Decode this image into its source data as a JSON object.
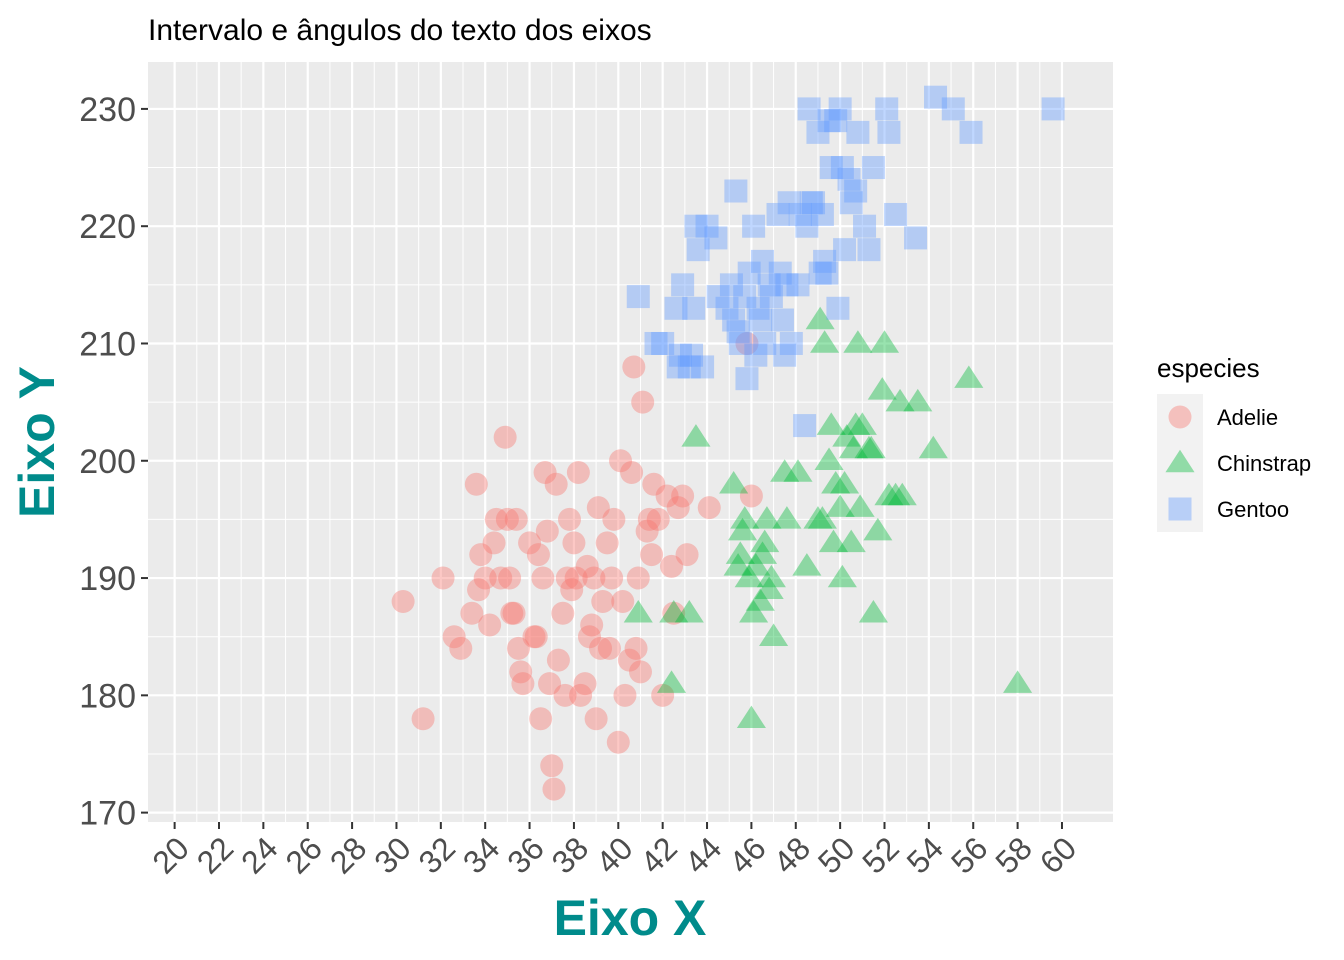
{
  "chart_data": {
    "type": "scatter",
    "title": "Intervalo e ângulos do texto dos eixos",
    "xlabel": "Eixo X",
    "ylabel": "Eixo Y",
    "axis_title_color": "#008B8B",
    "xlim": [
      18.8,
      62.3
    ],
    "ylim": [
      169.2,
      234
    ],
    "x_ticks": [
      20,
      22,
      24,
      26,
      28,
      30,
      32,
      34,
      36,
      38,
      40,
      42,
      44,
      46,
      48,
      50,
      52,
      54,
      56,
      58,
      60
    ],
    "y_ticks": [
      170,
      180,
      190,
      200,
      210,
      220,
      230
    ],
    "x_tick_angle": 45,
    "grid": true,
    "legend": {
      "title": "especies",
      "placement": "right",
      "entries": [
        {
          "name": "Adelie",
          "color": "#F8766D",
          "shape": "circle"
        },
        {
          "name": "Chinstrap",
          "color": "#00BA38",
          "shape": "triangle"
        },
        {
          "name": "Gentoo",
          "color": "#619CFF",
          "shape": "square"
        }
      ]
    },
    "series": [
      {
        "name": "Adelie",
        "color": "#F8766D",
        "shape": "circle",
        "points": [
          [
            30.3,
            188
          ],
          [
            31.2,
            178
          ],
          [
            32.1,
            190
          ],
          [
            32.6,
            185
          ],
          [
            32.9,
            184
          ],
          [
            33.4,
            187
          ],
          [
            33.6,
            198
          ],
          [
            33.7,
            189
          ],
          [
            33.8,
            192
          ],
          [
            34.0,
            190
          ],
          [
            34.2,
            186
          ],
          [
            34.4,
            193
          ],
          [
            34.5,
            195
          ],
          [
            34.7,
            190
          ],
          [
            34.9,
            202
          ],
          [
            35.0,
            195
          ],
          [
            35.1,
            190
          ],
          [
            35.2,
            187
          ],
          [
            35.3,
            187
          ],
          [
            35.4,
            195
          ],
          [
            35.5,
            184
          ],
          [
            35.6,
            182
          ],
          [
            35.7,
            181
          ],
          [
            36.0,
            193
          ],
          [
            36.2,
            185
          ],
          [
            36.3,
            185
          ],
          [
            36.4,
            192
          ],
          [
            36.5,
            178
          ],
          [
            36.6,
            190
          ],
          [
            36.7,
            199
          ],
          [
            36.8,
            194
          ],
          [
            36.9,
            181
          ],
          [
            37.0,
            174
          ],
          [
            37.1,
            172
          ],
          [
            37.2,
            198
          ],
          [
            37.3,
            183
          ],
          [
            37.5,
            187
          ],
          [
            37.6,
            180
          ],
          [
            37.7,
            190
          ],
          [
            37.8,
            195
          ],
          [
            37.9,
            189
          ],
          [
            38.0,
            193
          ],
          [
            38.1,
            190
          ],
          [
            38.2,
            199
          ],
          [
            38.3,
            180
          ],
          [
            38.5,
            181
          ],
          [
            38.6,
            191
          ],
          [
            38.7,
            185
          ],
          [
            38.8,
            186
          ],
          [
            38.9,
            190
          ],
          [
            39.0,
            178
          ],
          [
            39.1,
            196
          ],
          [
            39.2,
            184
          ],
          [
            39.3,
            188
          ],
          [
            39.5,
            193
          ],
          [
            39.6,
            184
          ],
          [
            39.7,
            190
          ],
          [
            39.8,
            195
          ],
          [
            40.0,
            176
          ],
          [
            40.1,
            200
          ],
          [
            40.2,
            188
          ],
          [
            40.3,
            180
          ],
          [
            40.5,
            183
          ],
          [
            40.6,
            199
          ],
          [
            40.7,
            208
          ],
          [
            40.8,
            184
          ],
          [
            40.9,
            190
          ],
          [
            41.0,
            182
          ],
          [
            41.1,
            205
          ],
          [
            41.3,
            194
          ],
          [
            41.4,
            195
          ],
          [
            41.5,
            192
          ],
          [
            41.6,
            198
          ],
          [
            41.8,
            195
          ],
          [
            42.0,
            180
          ],
          [
            42.2,
            197
          ],
          [
            42.4,
            191
          ],
          [
            42.5,
            187
          ],
          [
            42.7,
            196
          ],
          [
            42.9,
            197
          ],
          [
            43.1,
            192
          ],
          [
            44.1,
            196
          ],
          [
            45.8,
            210
          ],
          [
            46.0,
            197
          ]
        ]
      },
      {
        "name": "Chinstrap",
        "color": "#00BA38",
        "shape": "triangle",
        "points": [
          [
            40.9,
            187
          ],
          [
            42.4,
            181
          ],
          [
            42.5,
            187
          ],
          [
            43.2,
            187
          ],
          [
            43.5,
            202
          ],
          [
            45.2,
            198
          ],
          [
            45.4,
            191
          ],
          [
            45.5,
            192
          ],
          [
            45.6,
            194
          ],
          [
            45.7,
            195
          ],
          [
            45.9,
            190
          ],
          [
            46.0,
            178
          ],
          [
            46.1,
            187
          ],
          [
            46.2,
            191
          ],
          [
            46.4,
            188
          ],
          [
            46.5,
            192
          ],
          [
            46.6,
            193
          ],
          [
            46.7,
            195
          ],
          [
            46.8,
            189
          ],
          [
            46.9,
            190
          ],
          [
            47.0,
            185
          ],
          [
            47.5,
            199
          ],
          [
            47.6,
            195
          ],
          [
            48.1,
            199
          ],
          [
            48.5,
            191
          ],
          [
            49.0,
            195
          ],
          [
            49.1,
            212
          ],
          [
            49.2,
            195
          ],
          [
            49.3,
            210
          ],
          [
            49.5,
            200
          ],
          [
            49.6,
            203
          ],
          [
            49.7,
            193
          ],
          [
            49.8,
            198
          ],
          [
            50.0,
            196
          ],
          [
            50.1,
            190
          ],
          [
            50.2,
            198
          ],
          [
            50.3,
            202
          ],
          [
            50.5,
            193
          ],
          [
            50.6,
            201
          ],
          [
            50.7,
            203
          ],
          [
            50.8,
            210
          ],
          [
            50.9,
            196
          ],
          [
            51.0,
            203
          ],
          [
            51.3,
            201
          ],
          [
            51.4,
            201
          ],
          [
            51.5,
            187
          ],
          [
            51.7,
            194
          ],
          [
            51.9,
            206
          ],
          [
            52.0,
            210
          ],
          [
            52.2,
            197
          ],
          [
            52.5,
            197
          ],
          [
            52.7,
            205
          ],
          [
            52.8,
            197
          ],
          [
            53.5,
            205
          ],
          [
            54.2,
            201
          ],
          [
            55.8,
            207
          ],
          [
            58.0,
            181
          ]
        ]
      },
      {
        "name": "Gentoo",
        "color": "#619CFF",
        "shape": "square",
        "points": [
          [
            40.9,
            214
          ],
          [
            41.7,
            210
          ],
          [
            42.0,
            210
          ],
          [
            42.6,
            213
          ],
          [
            42.7,
            208
          ],
          [
            42.8,
            209
          ],
          [
            42.9,
            215
          ],
          [
            43.2,
            208
          ],
          [
            43.3,
            209
          ],
          [
            43.4,
            213
          ],
          [
            43.5,
            220
          ],
          [
            43.6,
            218
          ],
          [
            43.8,
            208
          ],
          [
            44.0,
            220
          ],
          [
            44.4,
            219
          ],
          [
            44.5,
            214
          ],
          [
            44.9,
            213
          ],
          [
            45.1,
            215
          ],
          [
            45.2,
            212
          ],
          [
            45.3,
            223
          ],
          [
            45.4,
            211
          ],
          [
            45.5,
            210
          ],
          [
            45.7,
            214
          ],
          [
            45.8,
            207
          ],
          [
            45.9,
            216
          ],
          [
            46.1,
            220
          ],
          [
            46.2,
            209
          ],
          [
            46.3,
            213
          ],
          [
            46.4,
            212
          ],
          [
            46.5,
            217
          ],
          [
            46.6,
            210
          ],
          [
            46.8,
            215
          ],
          [
            46.9,
            214
          ],
          [
            47.2,
            221
          ],
          [
            47.3,
            216
          ],
          [
            47.4,
            212
          ],
          [
            47.5,
            209
          ],
          [
            47.6,
            215
          ],
          [
            47.7,
            222
          ],
          [
            47.8,
            210
          ],
          [
            48.1,
            215
          ],
          [
            48.2,
            221
          ],
          [
            48.4,
            203
          ],
          [
            48.5,
            220
          ],
          [
            48.6,
            230
          ],
          [
            48.7,
            222
          ],
          [
            48.8,
            222
          ],
          [
            49.0,
            228
          ],
          [
            49.1,
            216
          ],
          [
            49.2,
            221
          ],
          [
            49.3,
            217
          ],
          [
            49.4,
            216
          ],
          [
            49.5,
            229
          ],
          [
            49.6,
            225
          ],
          [
            49.8,
            229
          ],
          [
            49.9,
            213
          ],
          [
            50.0,
            230
          ],
          [
            50.1,
            225
          ],
          [
            50.2,
            218
          ],
          [
            50.4,
            224
          ],
          [
            50.5,
            222
          ],
          [
            50.7,
            223
          ],
          [
            50.8,
            228
          ],
          [
            51.1,
            220
          ],
          [
            51.3,
            218
          ],
          [
            51.5,
            225
          ],
          [
            52.1,
            230
          ],
          [
            52.2,
            228
          ],
          [
            52.5,
            221
          ],
          [
            53.4,
            219
          ],
          [
            54.3,
            231
          ],
          [
            55.1,
            230
          ],
          [
            55.9,
            228
          ],
          [
            59.6,
            230
          ]
        ]
      }
    ]
  }
}
